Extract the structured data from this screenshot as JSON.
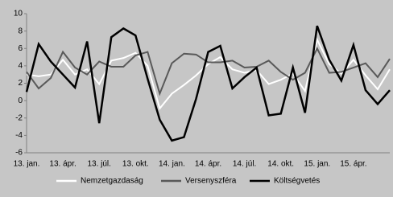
{
  "chart_data": {
    "type": "line",
    "categories": [
      "13. jan.",
      null,
      null,
      "13. ápr.",
      null,
      null,
      "13. júl.",
      null,
      null,
      "13. okt.",
      null,
      null,
      "14. jan.",
      null,
      null,
      "14. ápr.",
      null,
      null,
      "14. júl.",
      null,
      null,
      "14. okt.",
      null,
      null,
      "15. jan.",
      null,
      null,
      "15. ápr.",
      null,
      null,
      null
    ],
    "series": [
      {
        "name": "Nemzetgazdaság",
        "color": "#ffffff",
        "values": [
          3.0,
          2.8,
          3.0,
          4.7,
          3.0,
          3.6,
          1.9,
          4.6,
          4.9,
          5.5,
          4.0,
          -0.9,
          0.8,
          1.8,
          2.9,
          4.2,
          5.0,
          3.6,
          3.2,
          3.5,
          1.9,
          2.4,
          3.1,
          1.1,
          7.0,
          4.2,
          3.1,
          4.7,
          2.9,
          1.3,
          3.6
        ]
      },
      {
        "name": "Versenyszféra",
        "color": "#595959",
        "values": [
          3.3,
          1.4,
          2.6,
          5.6,
          3.8,
          3.0,
          4.5,
          3.9,
          3.9,
          5.2,
          5.6,
          0.8,
          4.3,
          5.4,
          5.3,
          4.4,
          4.4,
          4.6,
          3.8,
          3.9,
          4.6,
          3.3,
          2.4,
          3.2,
          6.0,
          3.2,
          3.3,
          3.8,
          4.3,
          2.7,
          4.8
        ]
      },
      {
        "name": "Költségvetés",
        "color": "#000000",
        "values": [
          1.0,
          6.5,
          4.5,
          3.0,
          1.5,
          6.8,
          -2.6,
          7.3,
          8.3,
          7.5,
          2.5,
          -2.2,
          -4.6,
          -4.2,
          0.2,
          5.6,
          6.3,
          1.4,
          2.7,
          3.8,
          -1.7,
          -1.5,
          3.8,
          -1.4,
          8.6,
          4.7,
          2.3,
          6.4,
          1.2,
          -0.4,
          1.2
        ]
      }
    ],
    "ylim": [
      -6,
      10
    ],
    "yticks": [
      -6,
      -4,
      -2,
      0,
      2,
      4,
      6,
      8,
      10
    ],
    "legend": "bottom"
  }
}
